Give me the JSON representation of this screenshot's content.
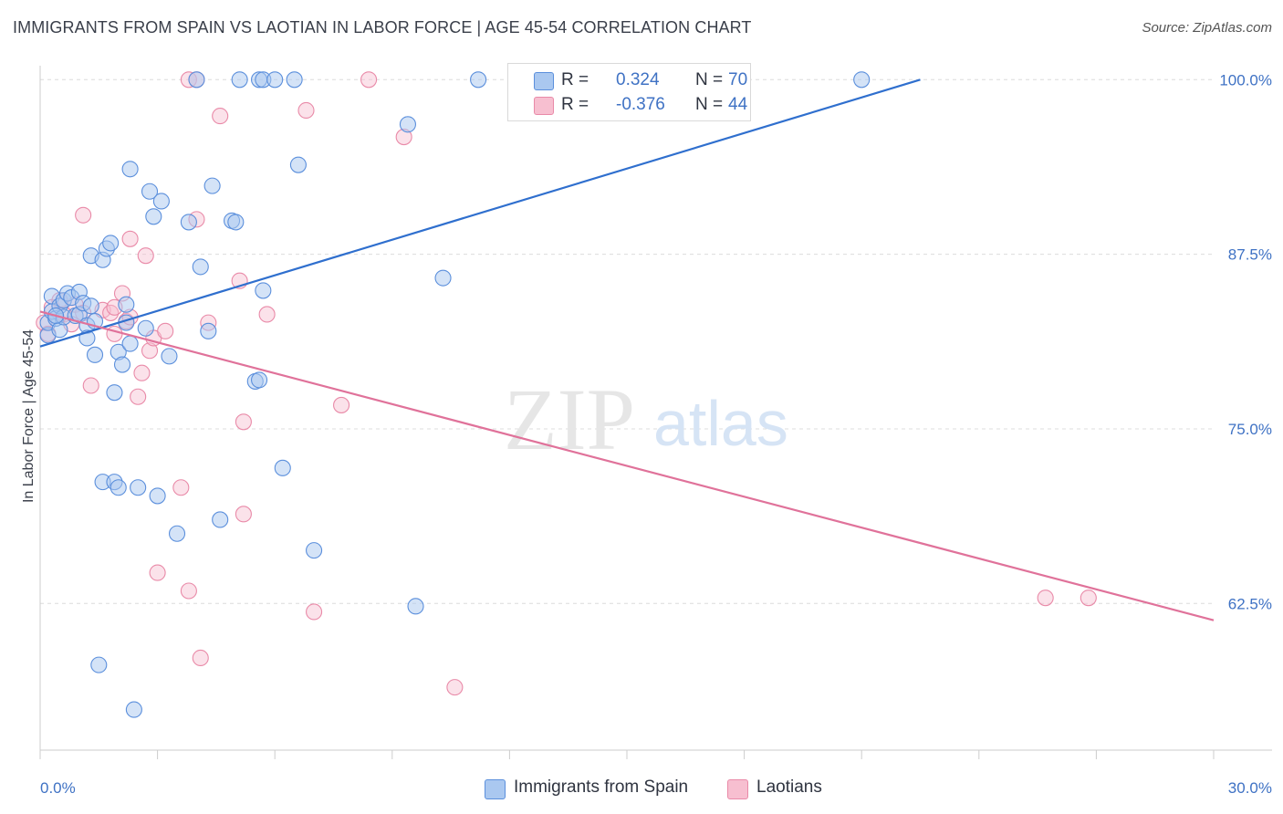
{
  "title": "IMMIGRANTS FROM SPAIN VS LAOTIAN IN LABOR FORCE | AGE 45-54 CORRELATION CHART",
  "source": "Source: ZipAtlas.com",
  "watermark": {
    "zip": "ZIP",
    "atlas": "atlas"
  },
  "legend": {
    "spain": {
      "r_label": "R =",
      "r_value": "0.324",
      "n_label": "N =",
      "n_value": "70"
    },
    "laotians": {
      "r_label": "R =",
      "r_value": "-0.376",
      "n_label": "N =",
      "n_value": "44"
    }
  },
  "bottom_legend": {
    "spain": "Immigrants from Spain",
    "laotians": "Laotians"
  },
  "colors": {
    "spain_fill": "#aac8f0",
    "spain_stroke": "#5b8fdc",
    "spain_line": "#2f6fce",
    "laotian_fill": "#f7bfd0",
    "laotian_stroke": "#e98aa8",
    "laotian_line": "#e0729a",
    "tick_text": "#3f72c4",
    "grid": "#dcdcdc"
  },
  "chart_data": {
    "type": "scatter",
    "xlabel": "",
    "ylabel": "In Labor Force | Age 45-54",
    "xlim": [
      0,
      30
    ],
    "ylim": [
      52,
      101
    ],
    "x_tick_labels": [
      "0.0%",
      "30.0%"
    ],
    "y_ticks": [
      62.5,
      75.0,
      87.5,
      100.0
    ],
    "y_tick_labels": [
      "62.5%",
      "75.0%",
      "87.5%",
      "100.0%"
    ],
    "grid": "horizontal dashed",
    "legend": "top-center",
    "series": [
      {
        "name": "Immigrants from Spain",
        "trend": {
          "x": [
            0.0,
            22.5
          ],
          "y": [
            80.9,
            100.0
          ]
        },
        "points": [
          [
            0.2,
            81.7
          ],
          [
            0.2,
            82.6
          ],
          [
            0.3,
            83.4
          ],
          [
            0.3,
            84.5
          ],
          [
            0.4,
            82.9
          ],
          [
            0.5,
            83.8
          ],
          [
            0.5,
            82.1
          ],
          [
            0.6,
            84.2
          ],
          [
            0.6,
            83.0
          ],
          [
            0.7,
            84.7
          ],
          [
            0.8,
            84.4
          ],
          [
            0.9,
            83.1
          ],
          [
            1.0,
            84.8
          ],
          [
            1.0,
            83.2
          ],
          [
            1.1,
            84.0
          ],
          [
            1.2,
            82.4
          ],
          [
            1.3,
            83.8
          ],
          [
            1.2,
            81.5
          ],
          [
            1.4,
            80.3
          ],
          [
            1.4,
            82.7
          ],
          [
            1.3,
            87.4
          ],
          [
            1.6,
            87.1
          ],
          [
            1.7,
            87.9
          ],
          [
            1.8,
            88.3
          ],
          [
            1.9,
            77.6
          ],
          [
            2.0,
            80.5
          ],
          [
            2.1,
            79.6
          ],
          [
            2.2,
            83.9
          ],
          [
            2.2,
            82.6
          ],
          [
            2.3,
            81.1
          ],
          [
            2.3,
            93.6
          ],
          [
            2.7,
            82.2
          ],
          [
            2.8,
            92.0
          ],
          [
            2.9,
            90.2
          ],
          [
            3.1,
            91.3
          ],
          [
            3.3,
            80.2
          ],
          [
            3.5,
            67.5
          ],
          [
            3.8,
            89.8
          ],
          [
            4.0,
            100.0
          ],
          [
            4.1,
            86.6
          ],
          [
            4.3,
            82.0
          ],
          [
            4.4,
            92.4
          ],
          [
            4.6,
            68.5
          ],
          [
            4.9,
            89.9
          ],
          [
            5.0,
            89.8
          ],
          [
            5.1,
            100.0
          ],
          [
            5.5,
            78.4
          ],
          [
            5.6,
            78.5
          ],
          [
            5.6,
            100.0
          ],
          [
            5.7,
            84.9
          ],
          [
            5.7,
            100.0
          ],
          [
            6.0,
            100.0
          ],
          [
            6.2,
            72.2
          ],
          [
            6.5,
            100.0
          ],
          [
            6.6,
            93.9
          ],
          [
            7.0,
            66.3
          ],
          [
            9.4,
            96.8
          ],
          [
            9.6,
            62.3
          ],
          [
            10.3,
            85.8
          ],
          [
            11.2,
            100.0
          ],
          [
            1.6,
            71.2
          ],
          [
            1.9,
            71.2
          ],
          [
            2.0,
            70.8
          ],
          [
            2.5,
            70.8
          ],
          [
            3.0,
            70.2
          ],
          [
            1.5,
            58.1
          ],
          [
            2.4,
            54.9
          ],
          [
            17.0,
            100.0
          ],
          [
            21.0,
            100.0
          ],
          [
            0.4,
            83.1
          ]
        ]
      },
      {
        "name": "Laotians",
        "trend": {
          "x": [
            0.0,
            30.0
          ],
          "y": [
            83.4,
            61.3
          ]
        },
        "points": [
          [
            0.1,
            82.6
          ],
          [
            0.2,
            81.8
          ],
          [
            0.3,
            83.7
          ],
          [
            0.5,
            84.2
          ],
          [
            0.6,
            83.2
          ],
          [
            0.8,
            82.5
          ],
          [
            0.9,
            83.9
          ],
          [
            1.1,
            83.3
          ],
          [
            1.1,
            90.3
          ],
          [
            1.3,
            78.1
          ],
          [
            1.6,
            83.5
          ],
          [
            1.8,
            83.3
          ],
          [
            1.9,
            83.7
          ],
          [
            1.9,
            81.8
          ],
          [
            2.1,
            84.7
          ],
          [
            2.2,
            82.7
          ],
          [
            2.3,
            83.0
          ],
          [
            2.3,
            88.6
          ],
          [
            2.5,
            77.3
          ],
          [
            2.6,
            79.0
          ],
          [
            2.7,
            87.4
          ],
          [
            2.8,
            80.6
          ],
          [
            2.9,
            81.5
          ],
          [
            3.0,
            64.7
          ],
          [
            3.2,
            82.0
          ],
          [
            3.6,
            70.8
          ],
          [
            3.8,
            63.4
          ],
          [
            3.8,
            100.0
          ],
          [
            4.0,
            100.0
          ],
          [
            4.0,
            90.0
          ],
          [
            4.1,
            58.6
          ],
          [
            4.3,
            82.6
          ],
          [
            4.6,
            97.4
          ],
          [
            5.1,
            85.6
          ],
          [
            5.2,
            75.5
          ],
          [
            5.2,
            68.9
          ],
          [
            5.8,
            83.2
          ],
          [
            6.8,
            97.8
          ],
          [
            7.0,
            61.9
          ],
          [
            7.7,
            76.7
          ],
          [
            8.4,
            100.0
          ],
          [
            9.3,
            95.9
          ],
          [
            10.6,
            56.5
          ],
          [
            25.7,
            62.9
          ]
        ]
      }
    ]
  },
  "extra_laotian_point": [
    26.8,
    62.9
  ]
}
